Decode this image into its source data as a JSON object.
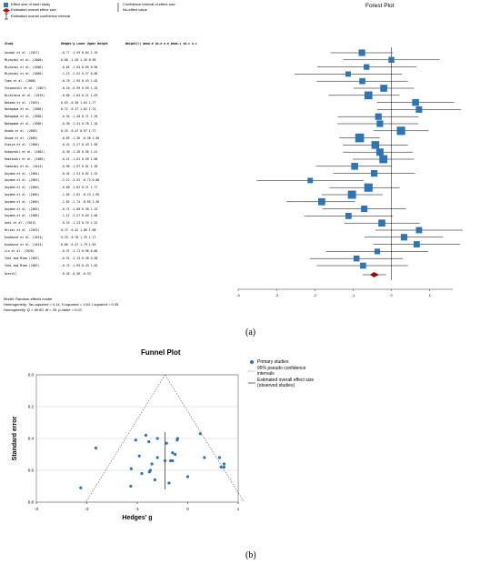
{
  "panel_a": {
    "legend": {
      "effect": "Effect size of each study",
      "overall": "Estimated overall effect size",
      "overall_ci": "Estimated overall confidence interval",
      "ci": "Confidence interval of effect size",
      "no_effect": "No-effect value"
    },
    "title": "Forest Plot",
    "header": {
      "study": "Study",
      "cols": "Hedges'g Lower Upper Weight",
      "cols2": "Weight(%) mean.e sd.e n.e mean.c sd.c n.c"
    },
    "overall_label": "Overall",
    "overall_values": "-0.45 -0.56 -0.33",
    "model": {
      "line1": "Model: Random-effects model",
      "line2": "Heterogeneity: Tau-squared = 0.14, H-squared = 1.54, I-squared = 0.35",
      "line3": "Homogeneity: Q = 46.60, df = 30, p-value = 0.03"
    },
    "caption": "(a)",
    "colors": {
      "marker": "#2e75b6",
      "overall": "#c00000"
    }
  },
  "panel_b": {
    "title": "Funnel Plot",
    "legend": {
      "primary": "Primary studies",
      "ci": "95% pseudo confidence intervals",
      "estimated": "Estimated overall effect size (observed studies)"
    },
    "caption": "(b)"
  },
  "chart_data": [
    {
      "type": "forest",
      "title": "Forest Plot",
      "xlim": [
        -4,
        1.6
      ],
      "xticks": [
        -4,
        -3,
        -2,
        -1,
        0,
        1
      ],
      "studies": [
        {
          "name": "Aouabi et al. (2017)",
          "g": -0.77,
          "lo": -1.59,
          "hi": 0.04,
          "w": 2.28,
          "row": "-0.77 -1.59 0.04 1.19"
        },
        {
          "name": "Miyazaki et al. (2000)",
          "g": 0.0,
          "lo": -1.26,
          "hi": 1.26,
          "w": 1.84,
          "row": "0.00 -1.26 1.26 0.96"
        },
        {
          "name": "Miyazaki et al. (2000)",
          "g": -0.65,
          "lo": -1.94,
          "hi": 0.65,
          "w": 1.73,
          "row": "-0.65 -1.94 0.65 0.90"
        },
        {
          "name": "Miyazaki et al. (2000)",
          "g": -1.13,
          "lo": -2.52,
          "hi": 0.27,
          "w": 1.54,
          "row": "-1.13 -2.52 0.27 0.80"
        },
        {
          "name": "Tomo et al. (2008)",
          "g": -0.76,
          "lo": -1.95,
          "hi": 0.43,
          "w": 1.95,
          "row": "-0.76 -1.95 0.43 1.02"
        },
        {
          "name": "Shimomishi et al. (2007)",
          "g": -0.2,
          "lo": -0.99,
          "hi": 0.59,
          "w": 2.55,
          "row": "-0.20 -0.99 0.59 1.33"
        },
        {
          "name": "Nishihara et al. (2015)",
          "g": -0.6,
          "lo": -1.64,
          "hi": 0.21,
          "w": 3.13,
          "row": "-0.60 -1.64 0.21 1.63"
        },
        {
          "name": "Nakada et al. (2019)",
          "g": 0.63,
          "lo": -0.38,
          "hi": 1.64,
          "w": 2.44,
          "row": "0.63 -0.38 1.64 1.27"
        },
        {
          "name": "Nakagawa et al. (2006)",
          "g": 0.72,
          "lo": -0.37,
          "hi": 1.82,
          "w": 2.2,
          "row": "0.72 -0.37 1.82 1.15"
        },
        {
          "name": "Nakagawa et al. (2006)",
          "g": -0.34,
          "lo": -1.4,
          "hi": 0.71,
          "w": 2.3,
          "row": "-0.34 -1.40 0.71 1.20"
        },
        {
          "name": "Nakagawa et al. (2006)",
          "g": -0.3,
          "lo": -1.41,
          "hi": 0.7,
          "w": 2.3,
          "row": "-0.30 -1.41 0.70 1.20"
        },
        {
          "name": "Okada et al. (2005)",
          "g": 0.25,
          "lo": -0.47,
          "hi": 0.97,
          "w": 3.4,
          "row": "0.25 -0.47 0.97 1.77"
        },
        {
          "name": "Okada et al. (2005)",
          "g": -0.83,
          "lo": -1.36,
          "hi": -0.3,
          "w": 3.65,
          "row": "-0.83 -1.36 -0.30 1.90"
        },
        {
          "name": "Esmiya et al. (2004)",
          "g": -0.42,
          "lo": -1.27,
          "hi": 0.43,
          "w": 3.03,
          "row": "-0.42 -1.27 0.43 1.58"
        },
        {
          "name": "Kobayashi et al. (2002)",
          "g": -0.3,
          "lo": -1.26,
          "hi": 0.56,
          "w": 2.71,
          "row": "-0.30 -1.26 0.56 1.41"
        },
        {
          "name": "Hamikoshi et al. (2009)",
          "g": -0.21,
          "lo": -1.01,
          "hi": 0.59,
          "w": 3.22,
          "row": "-0.21 -1.01 0.59 1.68"
        },
        {
          "name": "Yamazaki et al. (2014)",
          "g": -0.96,
          "lo": -1.97,
          "hi": 0.01,
          "w": 2.5,
          "row": "-0.96 -1.97 0.01 1.30"
        },
        {
          "name": "Aoyama et al. (2001)",
          "g": -0.45,
          "lo": -1.51,
          "hi": 0.62,
          "w": 2.28,
          "row": "-0.45 -1.51 0.62 1.19"
        },
        {
          "name": "Aoyama et al. (2001)",
          "g": -2.12,
          "lo": -3.52,
          "hi": -0.72,
          "w": 1.53,
          "row": "-2.12 -3.52 -0.72 0.80"
        },
        {
          "name": "Aoyama et al. (2002)",
          "g": -0.6,
          "lo": -1.62,
          "hi": 0.21,
          "w": 3.39,
          "row": "-0.60 -1.62 0.21 1.77"
        },
        {
          "name": "Aoyama et al. (2002)",
          "g": -1.03,
          "lo": -1.82,
          "hi": -0.23,
          "w": 3.25,
          "row": "-1.03 -1.82 -0.23 1.69"
        },
        {
          "name": "Aoyama et al. (2002)",
          "g": -1.82,
          "lo": -2.74,
          "hi": -0.95,
          "w": 2.61,
          "row": "-1.82 -2.74 -0.95 1.36"
        },
        {
          "name": "Aoyama et al. (2003)",
          "g": -0.71,
          "lo": -1.8,
          "hi": 0.38,
          "w": 2.2,
          "row": "-0.71 -1.80 0.38 1.15"
        },
        {
          "name": "Aoyama et al. (2005)",
          "g": -1.12,
          "lo": -2.27,
          "hi": 0.04,
          "w": 2.04,
          "row": "-1.12 -2.27 0.04 1.06"
        },
        {
          "name": "Aoki et al. (2015)",
          "g": -0.25,
          "lo": -1.23,
          "hi": 0.74,
          "w": 2.53,
          "row": "-0.25 -1.23 0.74 1.32"
        },
        {
          "name": "Hiroki et al. (2023)",
          "g": 0.72,
          "lo": -0.42,
          "hi": 1.86,
          "w": 2.08,
          "row": "0.72 -0.42 1.86 1.08"
        },
        {
          "name": "Kuwahara et al. (2014)",
          "g": 0.33,
          "lo": -0.7,
          "hi": 1.35,
          "w": 2.25,
          "row": "0.33 -0.70 1.35 1.17"
        },
        {
          "name": "Kuwahara et al. (2014)",
          "g": 0.66,
          "lo": -0.47,
          "hi": 1.79,
          "w": 2.1,
          "row": "0.66 -0.47 1.79 1.09"
        },
        {
          "name": "Lin et al. (2020)",
          "g": -0.37,
          "lo": -1.71,
          "hi": 0.96,
          "w": 1.65,
          "row": "-0.37 -1.71 0.96 0.86"
        },
        {
          "name": "Yaki and Mima (2007)",
          "g": -0.91,
          "lo": -2.13,
          "hi": 0.3,
          "w": 1.89,
          "row": "-0.91 -2.13 0.30 0.98"
        },
        {
          "name": "Yaki and Mima (2007)",
          "g": -0.74,
          "lo": -1.95,
          "hi": 0.43,
          "w": 1.95,
          "row": "-0.74 -1.95 0.43 1.02"
        }
      ],
      "overall": {
        "g": -0.45,
        "lo": -0.56,
        "hi": -0.33
      }
    },
    {
      "type": "scatter",
      "title": "Funnel Plot",
      "xlabel": "Hedges' g",
      "ylabel": "Standard error",
      "xlim": [
        -3,
        1
      ],
      "ylim": [
        0.8,
        0
      ],
      "xticks": [
        -3,
        -2,
        -1,
        0,
        1
      ],
      "yticks": [
        0.0,
        0.2,
        0.4,
        0.6,
        0.8
      ],
      "estimate": -0.45,
      "points": [
        [
          -2.12,
          0.71
        ],
        [
          -1.82,
          0.46
        ],
        [
          -1.13,
          0.7
        ],
        [
          -1.12,
          0.59
        ],
        [
          -1.03,
          0.41
        ],
        [
          -0.96,
          0.51
        ],
        [
          -0.91,
          0.62
        ],
        [
          -0.83,
          0.38
        ],
        [
          -0.77,
          0.42
        ],
        [
          -0.76,
          0.61
        ],
        [
          -0.74,
          0.6
        ],
        [
          -0.71,
          0.56
        ],
        [
          -0.65,
          0.66
        ],
        [
          -0.6,
          0.52
        ],
        [
          -0.6,
          0.4
        ],
        [
          -0.45,
          0.54
        ],
        [
          -0.42,
          0.43
        ],
        [
          -0.37,
          0.68
        ],
        [
          -0.34,
          0.54
        ],
        [
          -0.3,
          0.54
        ],
        [
          -0.3,
          0.49
        ],
        [
          -0.25,
          0.5
        ],
        [
          -0.21,
          0.41
        ],
        [
          -0.2,
          0.4
        ],
        [
          0.0,
          0.64
        ],
        [
          0.25,
          0.37
        ],
        [
          0.33,
          0.52
        ],
        [
          0.63,
          0.52
        ],
        [
          0.66,
          0.58
        ],
        [
          0.72,
          0.56
        ],
        [
          0.72,
          0.58
        ]
      ]
    }
  ]
}
